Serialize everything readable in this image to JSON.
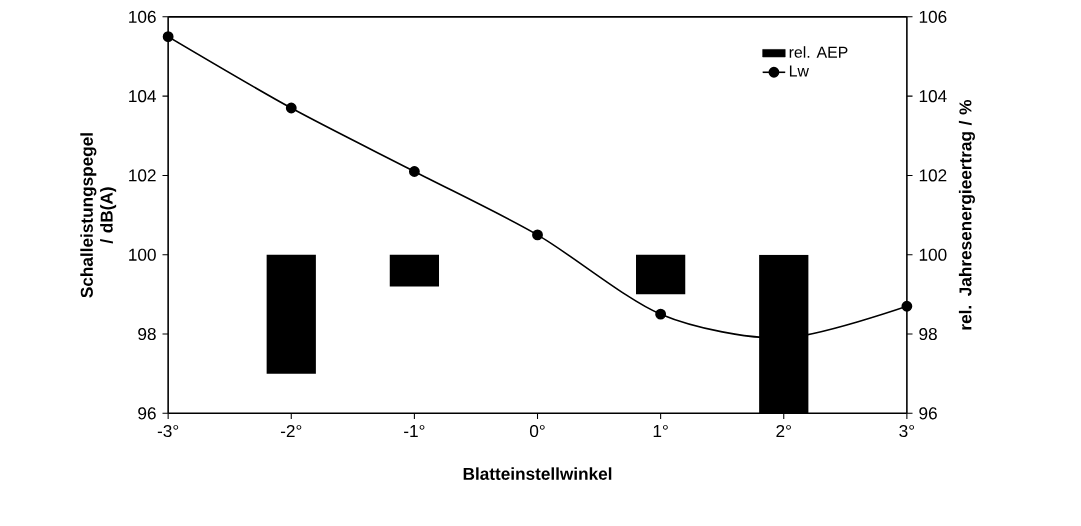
{
  "chart_data": {
    "type": "line",
    "categories": [
      "-3°",
      "-2°",
      "-1°",
      "0°",
      "1°",
      "2°",
      "3°"
    ],
    "xlabel": "Blatteinstellwinkel",
    "ylabel": "Schalleistungspegel / dB(A)",
    "y2label": "rel. Jahresenergieertrag / %",
    "ylim": [
      96,
      106
    ],
    "yticks": [
      96,
      98,
      100,
      102,
      104,
      106
    ],
    "y2lim": [
      96,
      106
    ],
    "y2ticks": [
      96,
      98,
      100,
      102,
      104,
      106
    ],
    "series": [
      {
        "name": "rel. AEP",
        "type": "bar",
        "axis": "y2",
        "color": "#000000",
        "base": [
          null,
          100,
          100,
          null,
          100,
          100,
          null
        ],
        "values": [
          null,
          -3.0,
          -0.8,
          null,
          -1.0,
          -4.0,
          null
        ]
      },
      {
        "name": "Lw",
        "color": "#000000",
        "values": [
          105.5,
          103.7,
          102.1,
          100.5,
          98.5,
          97.9,
          98.7
        ]
      }
    ],
    "legend": "top right",
    "marker": "circle",
    "line_style": "solid",
    "grid": false
  }
}
